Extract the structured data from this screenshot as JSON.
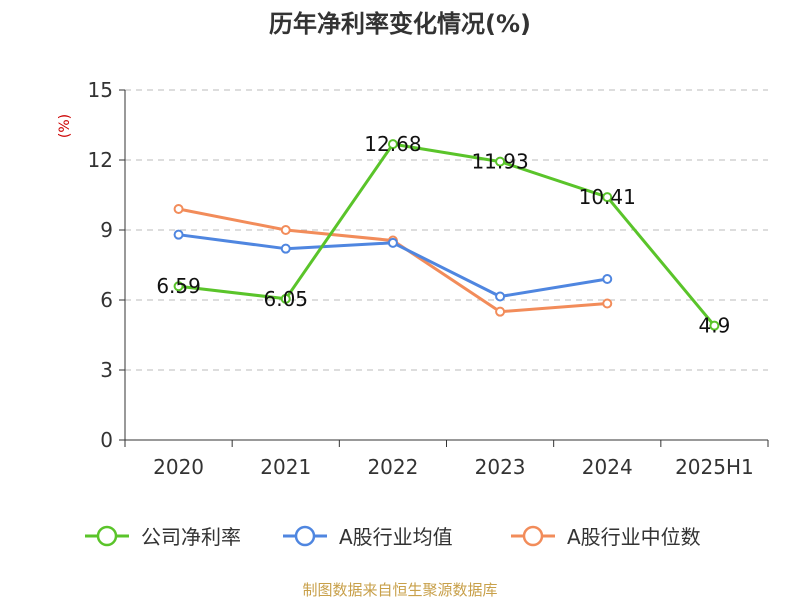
{
  "chart_data": {
    "type": "line",
    "title": "历年净利率变化情况(%)",
    "ylabel": "(%)",
    "xlabel": "",
    "categories": [
      "2020",
      "2021",
      "2022",
      "2023",
      "2024",
      "2025H1"
    ],
    "ylim": [
      0,
      15
    ],
    "yticks": [
      0,
      3,
      6,
      9,
      12,
      15
    ],
    "grid": true,
    "legend_position": "bottom",
    "series": [
      {
        "name": "公司净利率",
        "color": "#5ac42a",
        "values": [
          6.59,
          6.05,
          12.68,
          11.93,
          10.41,
          4.9
        ],
        "labels": [
          "6.59",
          "6.05",
          "12.68",
          "11.93",
          "10.41",
          "4.9"
        ]
      },
      {
        "name": "A股行业均值",
        "color": "#4f86e0",
        "values": [
          8.8,
          8.2,
          8.45,
          6.15,
          6.9,
          null
        ]
      },
      {
        "name": "A股行业中位数",
        "color": "#f28c5a",
        "values": [
          9.9,
          9.0,
          8.55,
          5.5,
          5.85,
          null
        ]
      }
    ],
    "source": "制图数据来自恒生聚源数据库"
  }
}
